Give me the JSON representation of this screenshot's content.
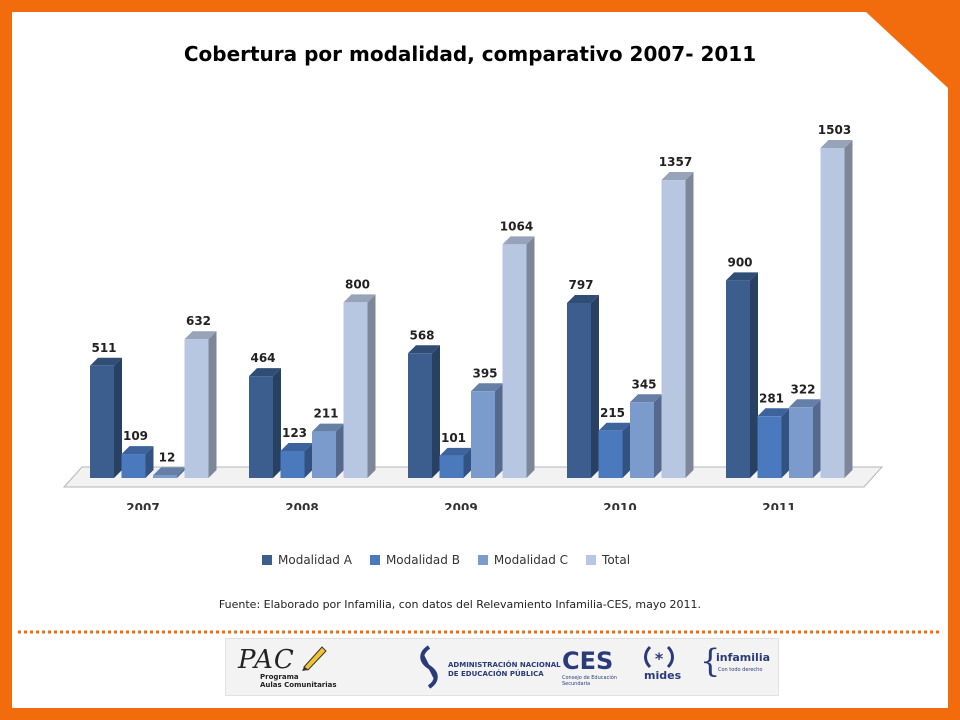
{
  "slide": {
    "title": "Cobertura por modalidad, comparativo 2007- 2011",
    "source": "Fuente: Elaborado por Infamilia, con datos del Relevamiento Infamilia-CES, mayo 2011.",
    "frame_color": "#f26c0d"
  },
  "chart_data": {
    "type": "bar",
    "title": "Cobertura por modalidad, comparativo 2007- 2011",
    "categories": [
      "2007",
      "2008",
      "2009",
      "2010",
      "2011"
    ],
    "series": [
      {
        "name": "Modalidad A",
        "values": [
          511,
          464,
          568,
          797,
          900
        ],
        "color": "#3b5e8f"
      },
      {
        "name": "Modalidad B",
        "values": [
          109,
          123,
          101,
          215,
          281
        ],
        "color": "#4a79be"
      },
      {
        "name": "Modalidad C",
        "values": [
          12,
          211,
          395,
          345,
          322
        ],
        "color": "#7b9bcc"
      },
      {
        "name": "Total",
        "values": [
          632,
          800,
          1064,
          1357,
          1503
        ],
        "color": "#b8c7e1"
      }
    ],
    "ylim": [
      0,
      1503
    ],
    "legend": "bottom",
    "grid": false,
    "data_labels": true,
    "style": "3d-clustered-column"
  },
  "logos": {
    "pac": {
      "mark": "PAC",
      "line1": "Programa",
      "line2": "Aulas Comunitarias"
    },
    "anep": {
      "line1": "ADMINISTRACIÓN NACIONAL",
      "line2": "DE EDUCACIÓN PÚBLICA"
    },
    "ces": {
      "mark": "CES",
      "line1": "Consejo de Educación",
      "line2": "Secundaria"
    },
    "mides": {
      "mark": "mides"
    },
    "infamilia": {
      "mark": "infamilia",
      "tagline": "Con todo derecho"
    }
  }
}
